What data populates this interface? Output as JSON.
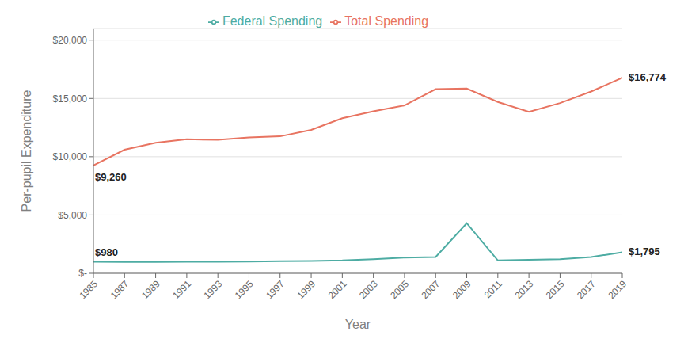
{
  "chart_data": {
    "type": "line",
    "x": [
      1985,
      1987,
      1989,
      1991,
      1993,
      1995,
      1997,
      1999,
      2001,
      2003,
      2005,
      2007,
      2009,
      2011,
      2013,
      2015,
      2017,
      2019
    ],
    "series": [
      {
        "name": "Federal Spending",
        "color": "#4DACA3",
        "values": [
          980,
          960,
          960,
          980,
          990,
          1010,
          1040,
          1060,
          1100,
          1200,
          1350,
          1400,
          4300,
          1100,
          1150,
          1200,
          1400,
          1795
        ]
      },
      {
        "name": "Total Spending",
        "color": "#E87461",
        "values": [
          9260,
          10600,
          11200,
          11500,
          11450,
          11650,
          11750,
          12300,
          13300,
          13900,
          14400,
          15800,
          15850,
          14700,
          13850,
          14600,
          15600,
          16774
        ]
      }
    ],
    "xlabel": "Year",
    "ylabel": "Per-pupil Expenditure",
    "xlim": [
      1985,
      2019
    ],
    "xticks": [
      1985,
      1987,
      1989,
      1991,
      1993,
      1995,
      1997,
      1999,
      2001,
      2003,
      2005,
      2007,
      2009,
      2011,
      2013,
      2015,
      2017,
      2019
    ],
    "ylim": [
      0,
      21000
    ],
    "yticks": [
      {
        "value": 0,
        "label": "$-"
      },
      {
        "value": 5000,
        "label": "$5,000"
      },
      {
        "value": 10000,
        "label": "$10,000"
      },
      {
        "value": 15000,
        "label": "$15,000"
      },
      {
        "value": 20000,
        "label": "$20,000"
      }
    ],
    "grid": "y",
    "legend": "top",
    "annotations": [
      {
        "text": "$980",
        "x": 1985,
        "y": 980
      },
      {
        "text": "$1,795",
        "x": 2019,
        "y": 1795
      },
      {
        "text": "$9,260",
        "x": 1985,
        "y": 9260
      },
      {
        "text": "$16,774",
        "x": 2019,
        "y": 16774
      }
    ]
  }
}
